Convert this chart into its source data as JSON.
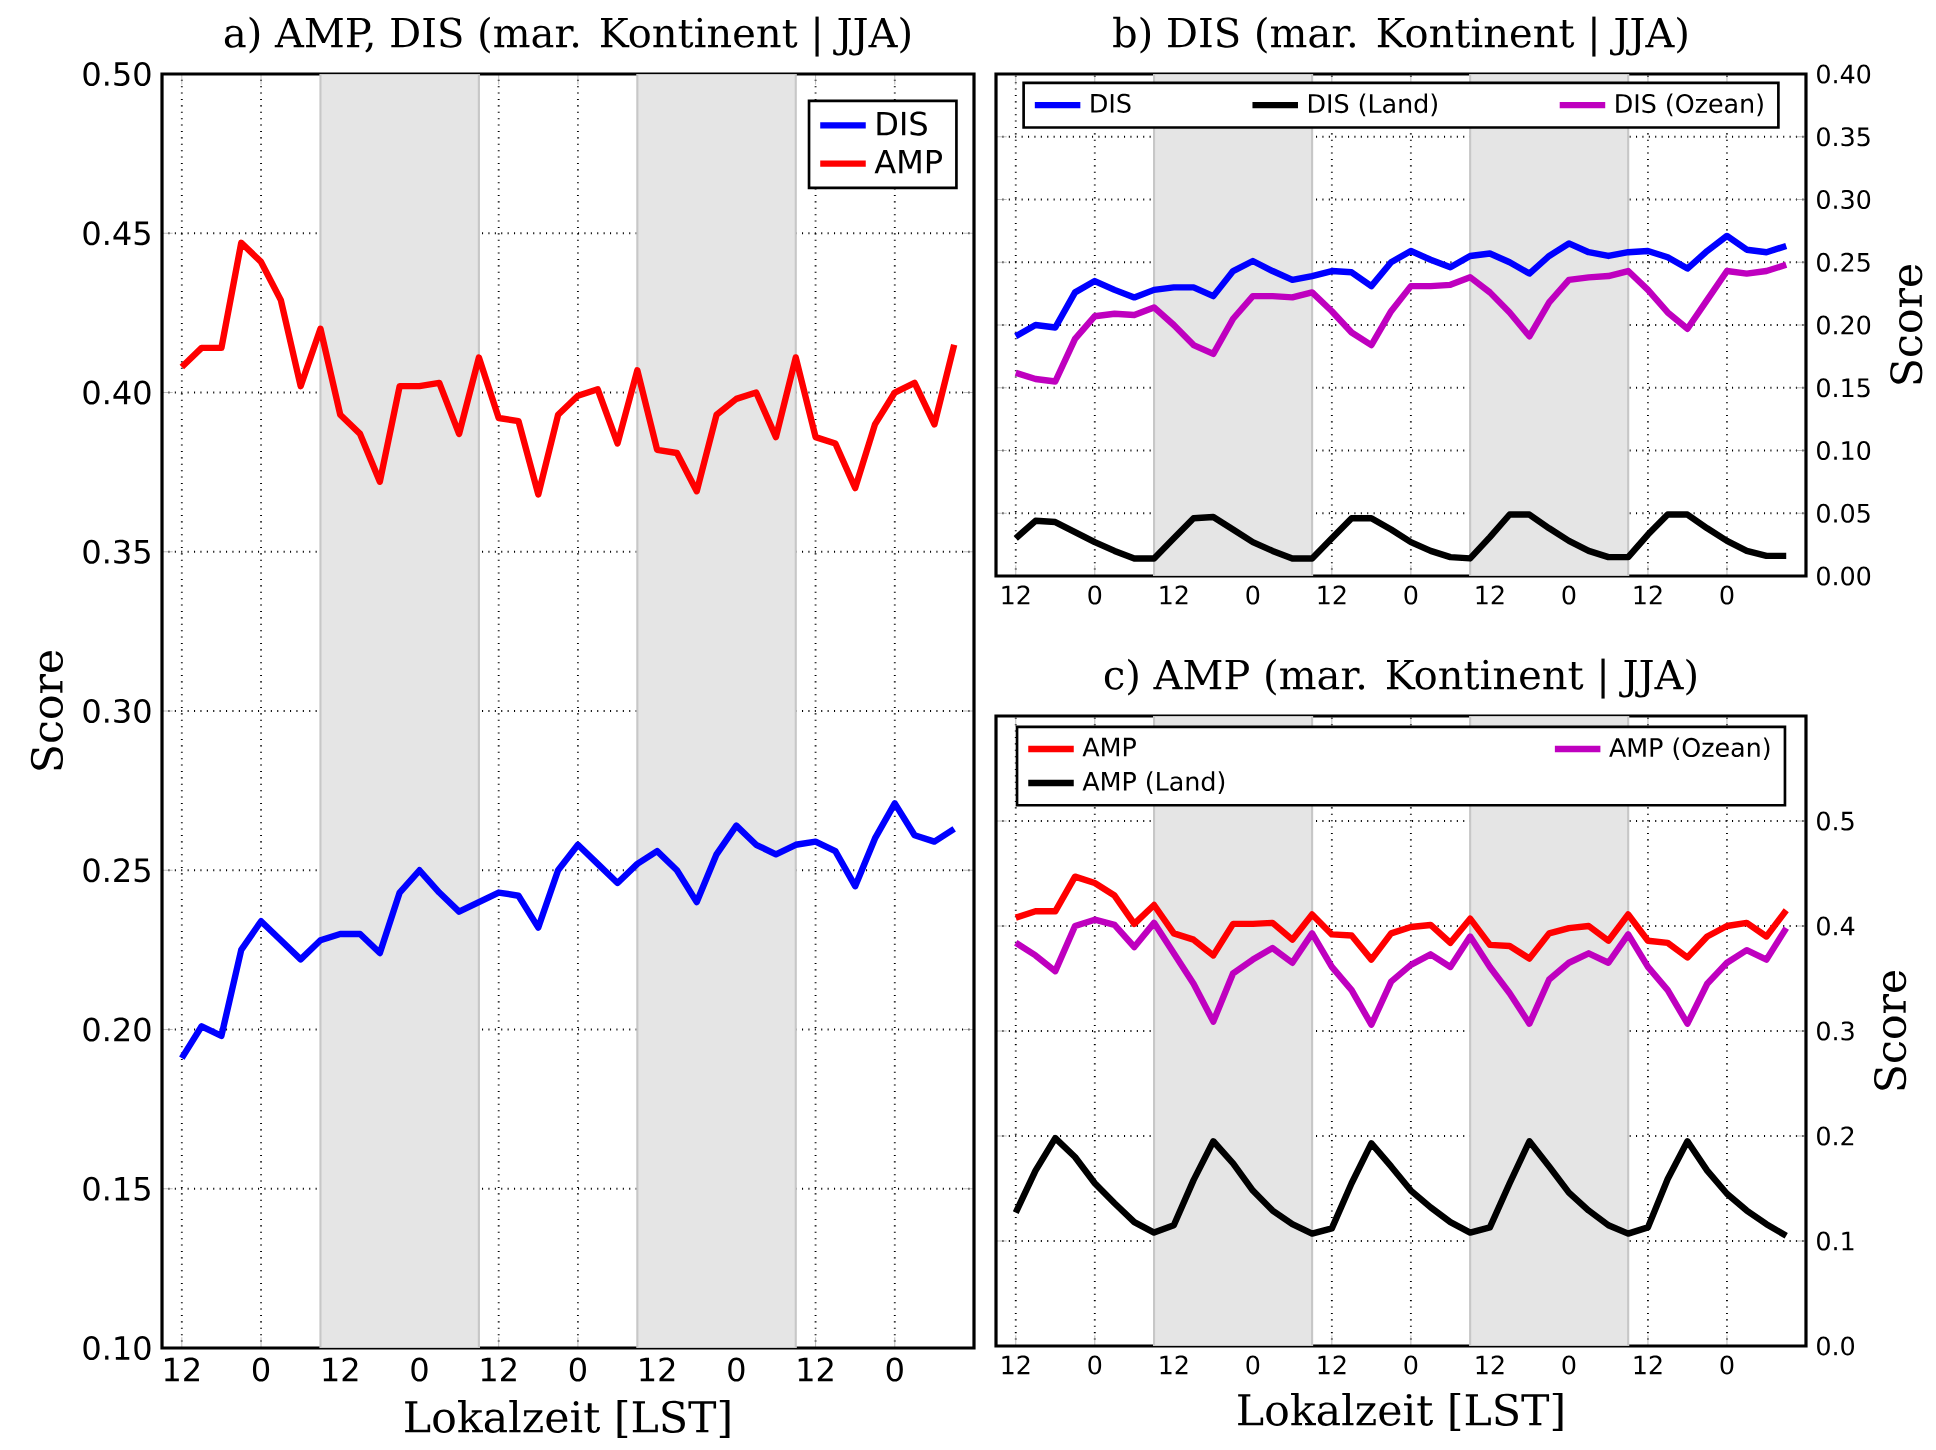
{
  "chart_data": [
    {
      "type": "line",
      "title": "a) AMP, DIS (mar. Kontinent | JJA)",
      "xlabel": "Lokalzeit [LST]",
      "ylabel": "Score",
      "categories": [
        "12",
        null,
        null,
        null,
        "0",
        null,
        null,
        null,
        "12",
        null,
        null,
        null,
        "0",
        null,
        null,
        null,
        "12",
        null,
        null,
        null,
        "0",
        null,
        null,
        null,
        "12",
        null,
        null,
        null,
        "0",
        null,
        null,
        null,
        "12",
        null,
        null,
        null,
        "0",
        null,
        null,
        null
      ],
      "series": [
        {
          "name": "DIS",
          "color": "#0000ff",
          "values": [
            0.191,
            0.201,
            0.198,
            0.225,
            0.234,
            0.228,
            0.222,
            0.228,
            0.23,
            0.23,
            0.224,
            0.243,
            0.25,
            0.243,
            0.237,
            0.24,
            0.243,
            0.242,
            0.232,
            0.25,
            0.258,
            0.252,
            0.246,
            0.252,
            0.256,
            0.25,
            0.24,
            0.255,
            0.264,
            0.258,
            0.255,
            0.258,
            0.259,
            0.256,
            0.245,
            0.26,
            0.271,
            0.261,
            0.259,
            0.263
          ]
        },
        {
          "name": "AMP",
          "color": "#ff0000",
          "values": [
            0.408,
            0.414,
            0.414,
            0.447,
            0.441,
            0.429,
            0.402,
            0.42,
            0.393,
            0.387,
            0.372,
            0.402,
            0.402,
            0.403,
            0.387,
            0.411,
            0.392,
            0.391,
            0.368,
            0.393,
            0.399,
            0.401,
            0.384,
            0.407,
            0.382,
            0.381,
            0.369,
            0.393,
            0.398,
            0.4,
            0.386,
            0.411,
            0.386,
            0.384,
            0.37,
            0.39,
            0.4,
            0.403,
            0.39,
            0.415
          ]
        }
      ],
      "ylim": [
        0.1,
        0.5
      ],
      "yticks": [
        {
          "value": 0.1,
          "label": "0.10"
        },
        0.15,
        {
          "value": 0.2,
          "label": "0.20"
        },
        0.25,
        {
          "value": 0.3,
          "label": "0.30"
        },
        0.35,
        {
          "value": 0.4,
          "label": "0.40"
        },
        0.45,
        {
          "value": 0.5,
          "label": "0.50"
        }
      ],
      "grid": true,
      "legend": "top right"
    },
    {
      "type": "line",
      "title": "b) DIS (mar. Kontinent | JJA)",
      "ylabel": "Score",
      "categories": [
        "12",
        null,
        null,
        null,
        "0",
        null,
        null,
        null,
        "12",
        null,
        null,
        null,
        "0",
        null,
        null,
        null,
        "12",
        null,
        null,
        null,
        "0",
        null,
        null,
        null,
        "12",
        null,
        null,
        null,
        "0",
        null,
        null,
        null,
        "12",
        null,
        null,
        null,
        "0",
        null,
        null,
        null
      ],
      "series": [
        {
          "name": "DIS",
          "color": "#0000ff",
          "values": [
            0.191,
            0.2,
            0.198,
            0.226,
            0.235,
            0.228,
            0.222,
            0.228,
            0.23,
            0.23,
            0.223,
            0.243,
            0.251,
            0.243,
            0.236,
            0.239,
            0.243,
            0.242,
            0.231,
            0.25,
            0.259,
            0.252,
            0.246,
            0.255,
            0.257,
            0.25,
            0.241,
            0.255,
            0.265,
            0.258,
            0.255,
            0.258,
            0.259,
            0.254,
            0.245,
            0.259,
            0.271,
            0.26,
            0.258,
            0.263
          ]
        },
        {
          "name": "DIS (Land)",
          "color": "#000000",
          "values": [
            0.03,
            0.044,
            0.043,
            0.035,
            0.027,
            0.02,
            0.014,
            0.014,
            0.03,
            0.046,
            0.047,
            0.037,
            0.027,
            0.02,
            0.014,
            0.014,
            0.03,
            0.046,
            0.046,
            0.037,
            0.027,
            0.02,
            0.015,
            0.014,
            0.031,
            0.049,
            0.049,
            0.038,
            0.028,
            0.02,
            0.015,
            0.015,
            0.033,
            0.049,
            0.049,
            0.038,
            0.028,
            0.02,
            0.016,
            0.016
          ]
        },
        {
          "name": "DIS (Ozean)",
          "color": "#bf00bf",
          "values": [
            0.162,
            0.157,
            0.155,
            0.189,
            0.207,
            0.209,
            0.208,
            0.214,
            0.2,
            0.184,
            0.177,
            0.205,
            0.223,
            0.223,
            0.222,
            0.226,
            0.211,
            0.194,
            0.184,
            0.211,
            0.231,
            0.231,
            0.232,
            0.238,
            0.226,
            0.21,
            0.191,
            0.218,
            0.236,
            0.238,
            0.239,
            0.243,
            0.228,
            0.21,
            0.197,
            0.22,
            0.243,
            0.241,
            0.243,
            0.248
          ]
        }
      ],
      "ylim": [
        0,
        0.4
      ],
      "yticks": [
        {
          "value": 0,
          "label": "0.00"
        },
        0.05,
        {
          "value": 0.1,
          "label": "0.10"
        },
        0.15,
        {
          "value": 0.2,
          "label": "0.20"
        },
        0.25,
        {
          "value": 0.3,
          "label": "0.30"
        },
        0.35,
        {
          "value": 0.4,
          "label": "0.40"
        }
      ],
      "grid": true,
      "legend": "top"
    },
    {
      "type": "line",
      "title": "c) AMP (mar. Kontinent | JJA)",
      "xlabel": "Lokalzeit [LST]",
      "ylabel": "Score",
      "categories": [
        "12",
        null,
        null,
        null,
        "0",
        null,
        null,
        null,
        "12",
        null,
        null,
        null,
        "0",
        null,
        null,
        null,
        "12",
        null,
        null,
        null,
        "0",
        null,
        null,
        null,
        "12",
        null,
        null,
        null,
        "0",
        null,
        null,
        null,
        "12",
        null,
        null,
        null,
        "0",
        null,
        null,
        null
      ],
      "series": [
        {
          "name": "AMP",
          "color": "#ff0000",
          "values": [
            0.408,
            0.414,
            0.414,
            0.447,
            0.441,
            0.429,
            0.402,
            0.42,
            0.393,
            0.387,
            0.372,
            0.402,
            0.402,
            0.403,
            0.387,
            0.411,
            0.392,
            0.391,
            0.368,
            0.393,
            0.399,
            0.401,
            0.384,
            0.407,
            0.382,
            0.381,
            0.369,
            0.393,
            0.398,
            0.4,
            0.386,
            0.411,
            0.386,
            0.384,
            0.37,
            0.39,
            0.4,
            0.403,
            0.39,
            0.415
          ]
        },
        {
          "name": "AMP (Ozean)",
          "color": "#bf00bf",
          "values": [
            0.384,
            0.372,
            0.357,
            0.4,
            0.406,
            0.401,
            0.38,
            0.403,
            0.374,
            0.345,
            0.309,
            0.355,
            0.368,
            0.379,
            0.365,
            0.393,
            0.361,
            0.339,
            0.306,
            0.347,
            0.363,
            0.373,
            0.361,
            0.39,
            0.361,
            0.336,
            0.307,
            0.349,
            0.365,
            0.374,
            0.365,
            0.392,
            0.361,
            0.339,
            0.307,
            0.345,
            0.365,
            0.377,
            0.368,
            0.398
          ]
        },
        {
          "name": "AMP (Land)",
          "color": "#000000",
          "values": [
            0.127,
            0.167,
            0.198,
            0.18,
            0.155,
            0.136,
            0.118,
            0.108,
            0.115,
            0.158,
            0.195,
            0.174,
            0.148,
            0.129,
            0.116,
            0.107,
            0.112,
            0.155,
            0.193,
            0.171,
            0.148,
            0.132,
            0.118,
            0.108,
            0.113,
            0.155,
            0.195,
            0.171,
            0.146,
            0.129,
            0.115,
            0.107,
            0.113,
            0.159,
            0.195,
            0.167,
            0.145,
            0.129,
            0.116,
            0.105
          ]
        }
      ],
      "ylim": [
        0,
        0.6
      ],
      "yticks": [
        {
          "value": 0,
          "label": "0.0"
        },
        0.1,
        0.2,
        0.3,
        0.4,
        0.5
      ],
      "grid": true,
      "legend": "top"
    }
  ]
}
